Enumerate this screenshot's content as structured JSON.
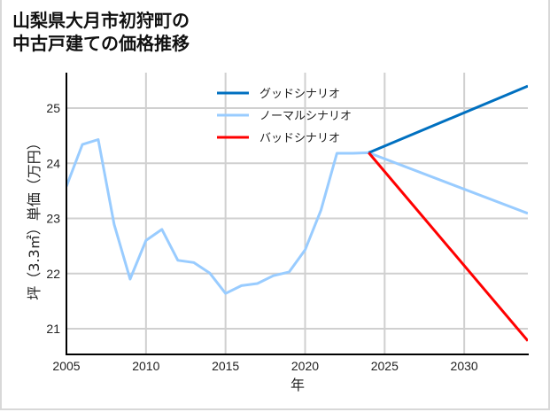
{
  "title": {
    "line1": "山梨県大月市初狩町の",
    "line2": "中古戸建ての価格推移"
  },
  "chart_data": {
    "type": "line",
    "title": "山梨県大月市初狩町の中古戸建ての価格推移",
    "xlabel": "年",
    "ylabel": "坪（3.3㎡）単価（万円）",
    "xlim": [
      2005,
      2034
    ],
    "ylim": [
      20.6,
      25.6
    ],
    "x_ticks": [
      2005,
      2010,
      2015,
      2020,
      2025,
      2030
    ],
    "y_ticks": [
      21,
      22,
      23,
      24,
      25
    ],
    "grid": true,
    "legend_position": "upper center",
    "series": [
      {
        "name": "ノーマルシナリオ",
        "color": "#99ccff",
        "x": [
          2005,
          2006,
          2007,
          2008,
          2009,
          2010,
          2011,
          2012,
          2013,
          2014,
          2015,
          2016,
          2017,
          2018,
          2019,
          2020,
          2021,
          2022,
          2023,
          2024,
          2034
        ],
        "values": [
          23.58,
          24.34,
          24.43,
          22.89,
          21.9,
          22.6,
          22.8,
          22.24,
          22.2,
          22.01,
          21.64,
          21.78,
          21.82,
          21.96,
          22.03,
          22.43,
          23.15,
          24.18,
          24.18,
          24.19,
          23.09
        ]
      },
      {
        "name": "グッドシナリオ",
        "color": "#0070c0",
        "x": [
          2024,
          2034
        ],
        "values": [
          24.19,
          25.4
        ]
      },
      {
        "name": "バッドシナリオ",
        "color": "#ff0000",
        "x": [
          2024,
          2034
        ],
        "values": [
          24.19,
          20.78
        ]
      }
    ]
  },
  "legend": {
    "items": [
      {
        "label": "グッドシナリオ",
        "color": "#0070c0"
      },
      {
        "label": "ノーマルシナリオ",
        "color": "#99ccff"
      },
      {
        "label": "バッドシナリオ",
        "color": "#ff0000"
      }
    ]
  },
  "axes": {
    "xlabel": "年",
    "ylabel": "坪（3.3㎡）単価（万円）",
    "x_tick_labels": [
      "2005",
      "2010",
      "2015",
      "2020",
      "2025",
      "2030"
    ],
    "y_tick_labels": [
      "21",
      "22",
      "23",
      "24",
      "25"
    ]
  }
}
